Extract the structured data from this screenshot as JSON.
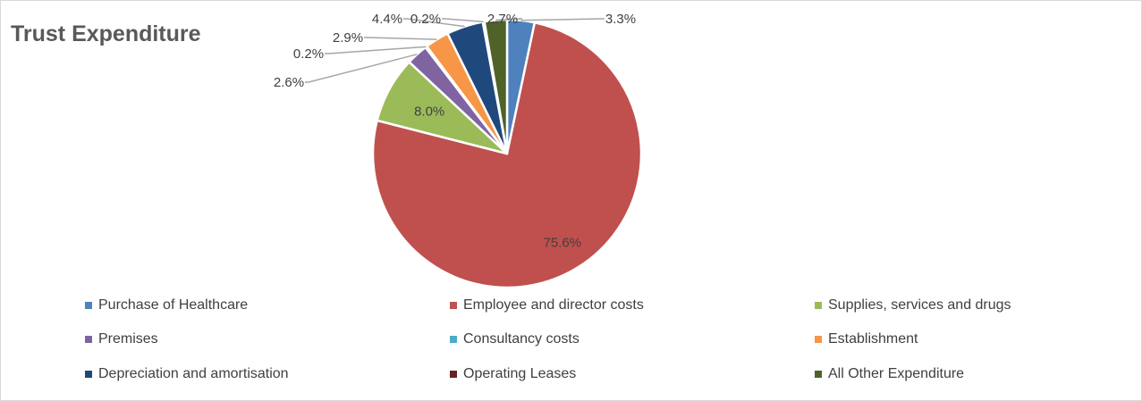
{
  "chart_data": {
    "type": "pie",
    "title": "Trust Expenditure",
    "start_angle_deg": 0,
    "direction": "clockwise",
    "categories": [
      "Purchase of Healthcare",
      "Employee and director costs",
      "Supplies, services and drugs",
      "Premises",
      "Consultancy costs",
      "Establishment",
      "Depreciation and amortisation",
      "Operating Leases",
      "All Other Expenditure"
    ],
    "values": [
      3.3,
      75.6,
      8.0,
      2.6,
      0.2,
      2.9,
      4.4,
      0.2,
      2.7
    ],
    "data_labels": [
      "3.3%",
      "75.6%",
      "8.0%",
      "2.6%",
      "0.2%",
      "2.9%",
      "4.4%",
      "0.2%",
      "2.7%"
    ],
    "colors": [
      "#4f81bd",
      "#c0504d",
      "#9bbb59",
      "#8064a2",
      "#4bacc6",
      "#f79646",
      "#1f497d",
      "#632523",
      "#4f6228"
    ],
    "legend_position": "bottom"
  }
}
